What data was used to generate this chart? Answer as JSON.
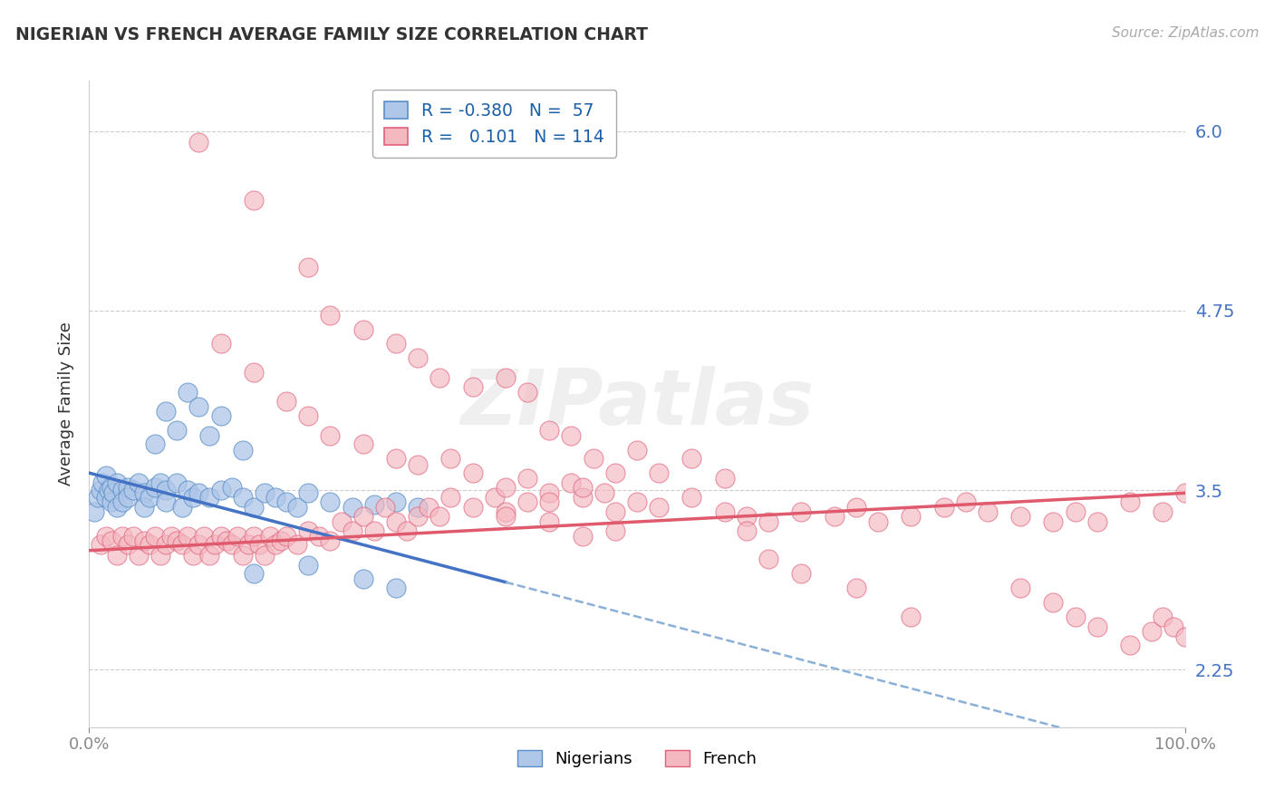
{
  "title": "NIGERIAN VS FRENCH AVERAGE FAMILY SIZE CORRELATION CHART",
  "source_text": "Source: ZipAtlas.com",
  "ylabel": "Average Family Size",
  "xmin": 0.0,
  "xmax": 100.0,
  "yticks": [
    2.25,
    3.5,
    4.75,
    6.0
  ],
  "ymin": 1.85,
  "ymax": 6.35,
  "nigerians_legend": "Nigerians",
  "french_legend": "French",
  "nigerian_color": "#aec6e8",
  "french_color": "#f4b8c1",
  "nigerian_edge": "#5a8fc8",
  "french_edge": "#e0607a",
  "trend_blue": "#4472c4",
  "trend_pink": "#e05a6e",
  "trend_dash_color": "#8ab0d8",
  "background": "#ffffff",
  "grid_color": "#cccccc",
  "legend_text_color": "#1a5fa8",
  "nigerian_points": [
    [
      0.5,
      3.35
    ],
    [
      0.8,
      3.45
    ],
    [
      1.0,
      3.5
    ],
    [
      1.2,
      3.55
    ],
    [
      1.5,
      3.6
    ],
    [
      1.5,
      3.45
    ],
    [
      1.8,
      3.5
    ],
    [
      2.0,
      3.52
    ],
    [
      2.0,
      3.42
    ],
    [
      2.2,
      3.48
    ],
    [
      2.5,
      3.55
    ],
    [
      2.5,
      3.38
    ],
    [
      3.0,
      3.5
    ],
    [
      3.0,
      3.42
    ],
    [
      3.5,
      3.52
    ],
    [
      3.5,
      3.45
    ],
    [
      4.0,
      3.5
    ],
    [
      4.5,
      3.55
    ],
    [
      5.0,
      3.48
    ],
    [
      5.0,
      3.38
    ],
    [
      5.5,
      3.45
    ],
    [
      6.0,
      3.52
    ],
    [
      6.5,
      3.55
    ],
    [
      7.0,
      3.5
    ],
    [
      7.0,
      3.42
    ],
    [
      8.0,
      3.55
    ],
    [
      8.5,
      3.38
    ],
    [
      9.0,
      3.5
    ],
    [
      9.5,
      3.45
    ],
    [
      10.0,
      3.48
    ],
    [
      11.0,
      3.45
    ],
    [
      12.0,
      3.5
    ],
    [
      13.0,
      3.52
    ],
    [
      14.0,
      3.45
    ],
    [
      15.0,
      3.38
    ],
    [
      16.0,
      3.48
    ],
    [
      17.0,
      3.45
    ],
    [
      18.0,
      3.42
    ],
    [
      19.0,
      3.38
    ],
    [
      20.0,
      3.48
    ],
    [
      22.0,
      3.42
    ],
    [
      24.0,
      3.38
    ],
    [
      26.0,
      3.4
    ],
    [
      28.0,
      3.42
    ],
    [
      30.0,
      3.38
    ],
    [
      6.0,
      3.82
    ],
    [
      7.0,
      4.05
    ],
    [
      8.0,
      3.92
    ],
    [
      9.0,
      4.18
    ],
    [
      10.0,
      4.08
    ],
    [
      11.0,
      3.88
    ],
    [
      12.0,
      4.02
    ],
    [
      14.0,
      3.78
    ],
    [
      15.0,
      2.92
    ],
    [
      20.0,
      2.98
    ],
    [
      25.0,
      2.88
    ],
    [
      28.0,
      2.82
    ]
  ],
  "french_points": [
    [
      1.0,
      3.12
    ],
    [
      1.5,
      3.18
    ],
    [
      2.0,
      3.15
    ],
    [
      2.5,
      3.05
    ],
    [
      3.0,
      3.18
    ],
    [
      3.5,
      3.12
    ],
    [
      4.0,
      3.18
    ],
    [
      4.5,
      3.05
    ],
    [
      5.0,
      3.15
    ],
    [
      5.5,
      3.12
    ],
    [
      6.0,
      3.18
    ],
    [
      6.5,
      3.05
    ],
    [
      7.0,
      3.12
    ],
    [
      7.5,
      3.18
    ],
    [
      8.0,
      3.15
    ],
    [
      8.5,
      3.12
    ],
    [
      9.0,
      3.18
    ],
    [
      9.5,
      3.05
    ],
    [
      10.0,
      3.12
    ],
    [
      10.5,
      3.18
    ],
    [
      11.0,
      3.05
    ],
    [
      11.5,
      3.12
    ],
    [
      12.0,
      3.18
    ],
    [
      12.5,
      3.15
    ],
    [
      13.0,
      3.12
    ],
    [
      13.5,
      3.18
    ],
    [
      14.0,
      3.05
    ],
    [
      14.5,
      3.12
    ],
    [
      15.0,
      3.18
    ],
    [
      15.5,
      3.12
    ],
    [
      16.0,
      3.05
    ],
    [
      16.5,
      3.18
    ],
    [
      17.0,
      3.12
    ],
    [
      17.5,
      3.15
    ],
    [
      18.0,
      3.18
    ],
    [
      19.0,
      3.12
    ],
    [
      20.0,
      3.22
    ],
    [
      21.0,
      3.18
    ],
    [
      22.0,
      3.15
    ],
    [
      23.0,
      3.28
    ],
    [
      24.0,
      3.22
    ],
    [
      25.0,
      3.32
    ],
    [
      26.0,
      3.22
    ],
    [
      27.0,
      3.38
    ],
    [
      28.0,
      3.28
    ],
    [
      29.0,
      3.22
    ],
    [
      30.0,
      3.32
    ],
    [
      31.0,
      3.38
    ],
    [
      32.0,
      3.32
    ],
    [
      33.0,
      3.45
    ],
    [
      35.0,
      3.38
    ],
    [
      37.0,
      3.45
    ],
    [
      38.0,
      3.35
    ],
    [
      40.0,
      3.42
    ],
    [
      42.0,
      3.48
    ],
    [
      44.0,
      3.55
    ],
    [
      45.0,
      3.45
    ],
    [
      47.0,
      3.48
    ],
    [
      48.0,
      3.35
    ],
    [
      50.0,
      3.42
    ],
    [
      52.0,
      3.38
    ],
    [
      55.0,
      3.45
    ],
    [
      58.0,
      3.35
    ],
    [
      60.0,
      3.32
    ],
    [
      62.0,
      3.28
    ],
    [
      65.0,
      3.35
    ],
    [
      68.0,
      3.32
    ],
    [
      70.0,
      3.38
    ],
    [
      72.0,
      3.28
    ],
    [
      75.0,
      3.32
    ],
    [
      78.0,
      3.38
    ],
    [
      80.0,
      3.42
    ],
    [
      82.0,
      3.35
    ],
    [
      85.0,
      3.32
    ],
    [
      88.0,
      3.28
    ],
    [
      90.0,
      3.35
    ],
    [
      92.0,
      3.28
    ],
    [
      95.0,
      3.42
    ],
    [
      98.0,
      3.35
    ],
    [
      100.0,
      3.48
    ],
    [
      10.0,
      5.92
    ],
    [
      15.0,
      5.52
    ],
    [
      20.0,
      5.05
    ],
    [
      22.0,
      4.72
    ],
    [
      25.0,
      4.62
    ],
    [
      28.0,
      4.52
    ],
    [
      30.0,
      4.42
    ],
    [
      32.0,
      4.28
    ],
    [
      35.0,
      4.22
    ],
    [
      38.0,
      4.28
    ],
    [
      40.0,
      4.18
    ],
    [
      42.0,
      3.92
    ],
    [
      44.0,
      3.88
    ],
    [
      46.0,
      3.72
    ],
    [
      48.0,
      3.62
    ],
    [
      50.0,
      3.78
    ],
    [
      52.0,
      3.62
    ],
    [
      55.0,
      3.72
    ],
    [
      58.0,
      3.58
    ],
    [
      12.0,
      4.52
    ],
    [
      15.0,
      4.32
    ],
    [
      18.0,
      4.12
    ],
    [
      20.0,
      4.02
    ],
    [
      22.0,
      3.88
    ],
    [
      25.0,
      3.82
    ],
    [
      28.0,
      3.72
    ],
    [
      30.0,
      3.68
    ],
    [
      33.0,
      3.72
    ],
    [
      35.0,
      3.62
    ],
    [
      38.0,
      3.52
    ],
    [
      40.0,
      3.58
    ],
    [
      42.0,
      3.42
    ],
    [
      45.0,
      3.52
    ],
    [
      85.0,
      2.82
    ],
    [
      88.0,
      2.72
    ],
    [
      90.0,
      2.62
    ],
    [
      92.0,
      2.55
    ],
    [
      95.0,
      2.42
    ],
    [
      97.0,
      2.52
    ],
    [
      98.0,
      2.62
    ],
    [
      99.0,
      2.55
    ],
    [
      100.0,
      2.48
    ],
    [
      60.0,
      3.22
    ],
    [
      62.0,
      3.02
    ],
    [
      65.0,
      2.92
    ],
    [
      70.0,
      2.82
    ],
    [
      75.0,
      2.62
    ],
    [
      38.0,
      3.32
    ],
    [
      42.0,
      3.28
    ],
    [
      45.0,
      3.18
    ],
    [
      48.0,
      3.22
    ]
  ]
}
